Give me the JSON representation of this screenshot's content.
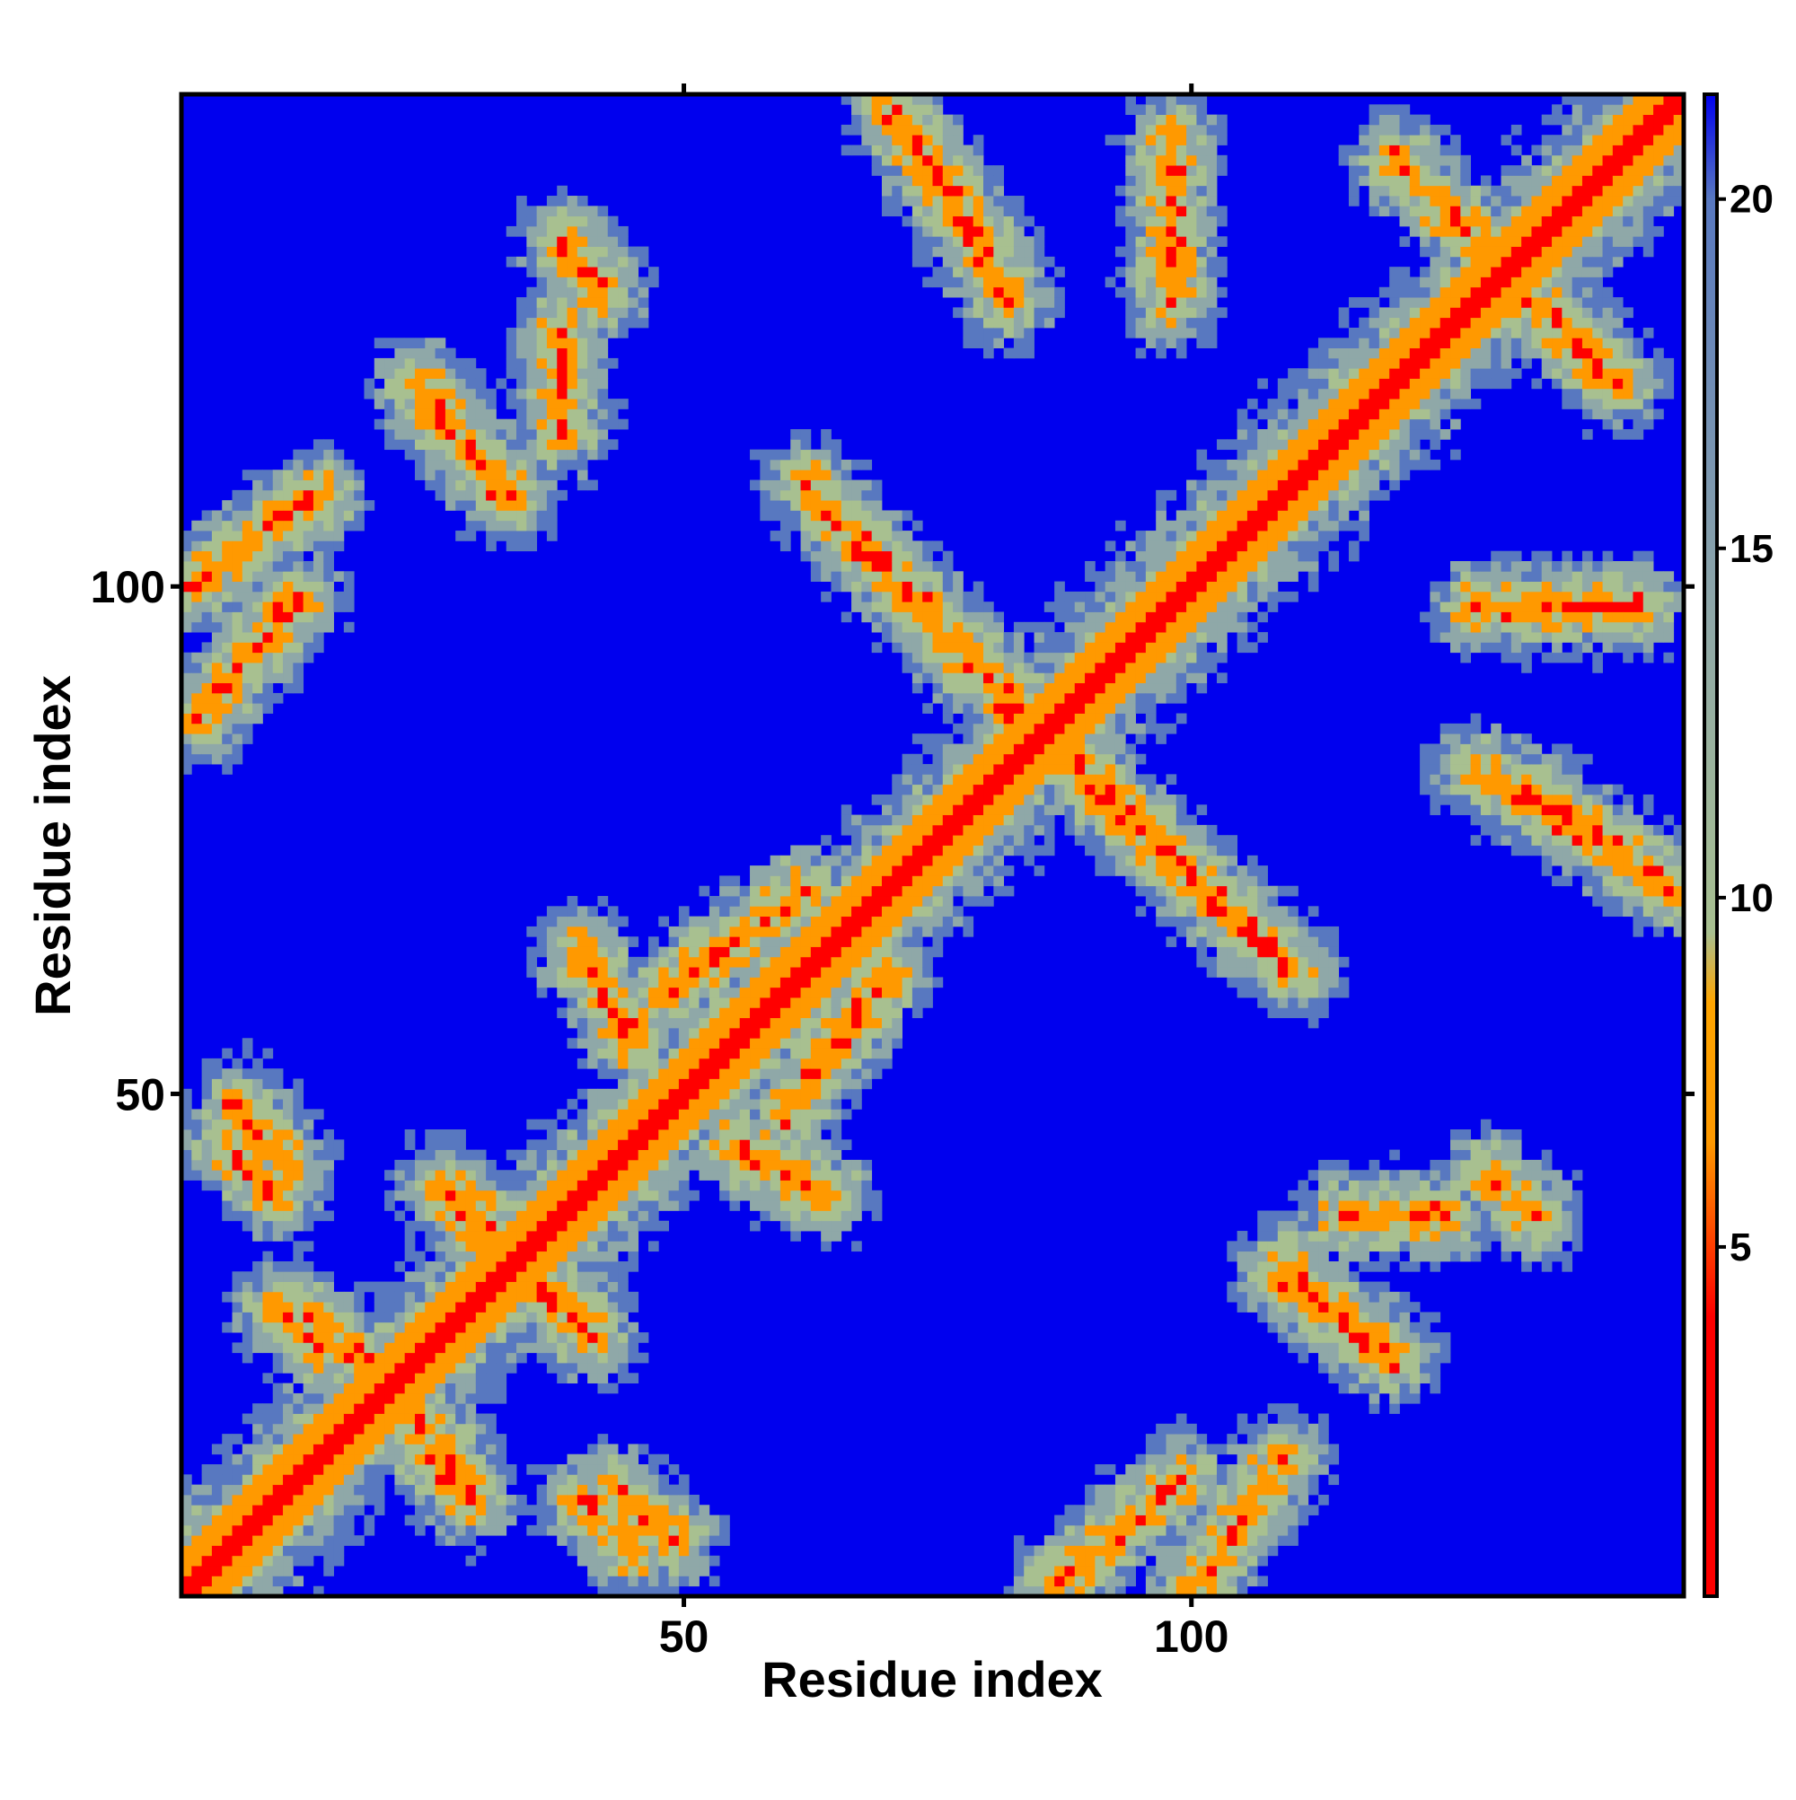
{
  "chart_data": {
    "type": "heatmap",
    "title": "",
    "xlabel": "Residue index",
    "ylabel": "Residue index",
    "n_residues": 148,
    "xlim": [
      1,
      148
    ],
    "ylim": [
      1,
      148
    ],
    "x_ticks": [
      50,
      100
    ],
    "y_ticks": [
      50,
      100
    ],
    "colorbar": {
      "ticks": [
        5,
        10,
        15,
        20
      ],
      "range": [
        0,
        21.5
      ],
      "colors": [
        {
          "value": 0,
          "color": "#ff0000"
        },
        {
          "value": 4,
          "color": "#ff0000"
        },
        {
          "value": 6.5,
          "color": "#ff9900"
        },
        {
          "value": 8.5,
          "color": "#ffa500"
        },
        {
          "value": 9.5,
          "color": "#a8c090"
        },
        {
          "value": 14,
          "color": "#8fa8a8"
        },
        {
          "value": 20,
          "color": "#5878c0"
        },
        {
          "value": 21.5,
          "color": "#0000ee"
        }
      ]
    },
    "colors": {
      "background": "#0000ee",
      "diagonal": "#ff0000",
      "contact": "#ff9900",
      "near": "#a8c090",
      "mid": "#8fa8a8",
      "far": "#5878c0"
    },
    "contact_bands": [
      {
        "from": [
          1,
          100
        ],
        "to": [
          14,
          109
        ],
        "kind": "parallel"
      },
      {
        "from": [
          6,
          49
        ],
        "to": [
          11,
          43
        ],
        "kind": "anti"
      },
      {
        "from": [
          10,
          29
        ],
        "to": [
          14,
          25
        ],
        "kind": "anti"
      },
      {
        "from": [
          24,
          18
        ],
        "to": [
          28,
          13
        ],
        "kind": "anti"
      },
      {
        "from": [
          28,
          40
        ],
        "to": [
          33,
          34
        ],
        "kind": "anti"
      },
      {
        "from": [
          36,
          31
        ],
        "to": [
          41,
          26
        ],
        "kind": "anti"
      },
      {
        "from": [
          40,
          10
        ],
        "to": [
          45,
          5
        ],
        "kind": "anti"
      },
      {
        "from": [
          25,
          118
        ],
        "to": [
          33,
          109
        ],
        "kind": "anti"
      },
      {
        "from": [
          38,
          134
        ],
        "to": [
          42,
          129
        ],
        "kind": "anti"
      },
      {
        "from": [
          62,
          110
        ],
        "to": [
          83,
          88
        ],
        "kind": "anti"
      },
      {
        "from": [
          85,
          85
        ],
        "to": [
          110,
          62
        ],
        "kind": "anti"
      },
      {
        "from": [
          87,
          2
        ],
        "to": [
          99,
          12
        ],
        "kind": "parallel"
      },
      {
        "from": [
          109,
          32
        ],
        "to": [
          120,
          24
        ],
        "kind": "anti"
      },
      {
        "from": [
          115,
          38
        ],
        "to": [
          125,
          38
        ],
        "kind": "parallel"
      },
      {
        "from": [
          128,
          82
        ],
        "to": [
          148,
          70
        ],
        "kind": "anti"
      },
      {
        "from": [
          120,
          142
        ],
        "to": [
          138,
          124
        ],
        "kind": "anti"
      },
      {
        "from": [
          72,
          145
        ],
        "to": [
          80,
          133
        ],
        "kind": "anti"
      },
      {
        "from": [
          48,
          60
        ],
        "to": [
          62,
          70
        ],
        "kind": "parallel"
      },
      {
        "from": [
          55,
          45
        ],
        "to": [
          64,
          40
        ],
        "kind": "anti"
      },
      {
        "from": [
          128,
          98
        ],
        "to": [
          144,
          98
        ],
        "kind": "parallel"
      }
    ]
  }
}
